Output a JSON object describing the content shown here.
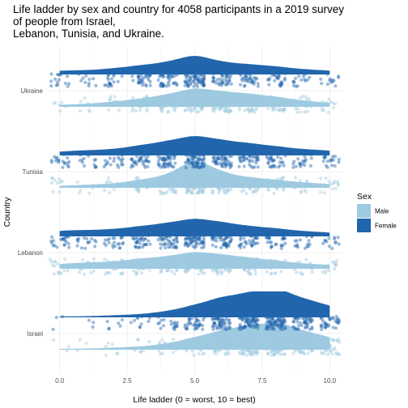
{
  "chart_data": {
    "type": "raincloud",
    "title_lines": [
      "Life ladder by sex and country for 4058 participants in a 2019 survey",
      "of people from Israel,",
      "Lebanon, Tunisia, and Ukraine."
    ],
    "xlabel": "Life ladder (0 = worst, 10 = best)",
    "ylabel": "Country",
    "xlim": [
      -0.5,
      10.5
    ],
    "x_ticks": [
      0,
      2.5,
      5,
      7.5,
      10
    ],
    "x_tick_labels": [
      "0.0",
      "2.5",
      "5.0",
      "7.5",
      "10.0"
    ],
    "countries": [
      "Ukraine",
      "Tunisia",
      "Lebanon",
      "Israel"
    ],
    "legend": {
      "title": "Sex",
      "placement": "right",
      "entries": [
        {
          "label": "Male",
          "color": "#9ecae1"
        },
        {
          "label": "Female",
          "color": "#2166ac"
        }
      ]
    },
    "grid": true,
    "levels": [
      0,
      1,
      2,
      3,
      4,
      5,
      6,
      7,
      8,
      9,
      10
    ],
    "series": [
      {
        "country": "Ukraine",
        "sex": "Female",
        "density": [
          0.04,
          0.04,
          0.06,
          0.09,
          0.12,
          0.2,
          0.12,
          0.1,
          0.08,
          0.05,
          0.04
        ],
        "weights": [
          5,
          3,
          6,
          10,
          12,
          20,
          12,
          10,
          8,
          5,
          4
        ]
      },
      {
        "country": "Ukraine",
        "sex": "Male",
        "density": [
          0.02,
          0.03,
          0.05,
          0.08,
          0.12,
          0.19,
          0.15,
          0.13,
          0.1,
          0.06,
          0.04
        ],
        "weights": [
          2,
          2,
          4,
          8,
          12,
          19,
          15,
          13,
          10,
          6,
          4
        ]
      },
      {
        "country": "Tunisia",
        "sex": "Female",
        "density": [
          0.04,
          0.05,
          0.06,
          0.1,
          0.14,
          0.2,
          0.15,
          0.12,
          0.09,
          0.06,
          0.05
        ],
        "weights": [
          6,
          4,
          6,
          10,
          14,
          20,
          15,
          12,
          9,
          6,
          6
        ]
      },
      {
        "country": "Tunisia",
        "sex": "Male",
        "density": [
          0.02,
          0.03,
          0.04,
          0.08,
          0.12,
          0.3,
          0.15,
          0.1,
          0.08,
          0.05,
          0.04
        ],
        "weights": [
          3,
          2,
          3,
          7,
          11,
          26,
          14,
          10,
          8,
          5,
          5
        ]
      },
      {
        "country": "Lebanon",
        "sex": "Female",
        "density": [
          0.06,
          0.06,
          0.07,
          0.1,
          0.13,
          0.18,
          0.14,
          0.1,
          0.08,
          0.05,
          0.04
        ],
        "weights": [
          7,
          5,
          7,
          10,
          13,
          18,
          14,
          10,
          8,
          5,
          4
        ]
      },
      {
        "country": "Lebanon",
        "sex": "Male",
        "density": [
          0.05,
          0.06,
          0.07,
          0.1,
          0.12,
          0.17,
          0.14,
          0.11,
          0.08,
          0.05,
          0.04
        ],
        "weights": [
          5,
          5,
          6,
          9,
          11,
          16,
          13,
          10,
          7,
          5,
          4
        ]
      },
      {
        "country": "Israel",
        "sex": "Female",
        "density": [
          0.01,
          0.01,
          0.02,
          0.03,
          0.06,
          0.12,
          0.2,
          0.24,
          0.3,
          0.18,
          0.12
        ],
        "weights": [
          1,
          1,
          2,
          3,
          6,
          11,
          17,
          20,
          24,
          15,
          11
        ]
      },
      {
        "country": "Israel",
        "sex": "Male",
        "density": [
          0.01,
          0.01,
          0.02,
          0.03,
          0.06,
          0.12,
          0.19,
          0.24,
          0.29,
          0.18,
          0.13
        ],
        "weights": [
          1,
          1,
          2,
          3,
          6,
          11,
          17,
          20,
          23,
          15,
          11
        ]
      }
    ]
  }
}
